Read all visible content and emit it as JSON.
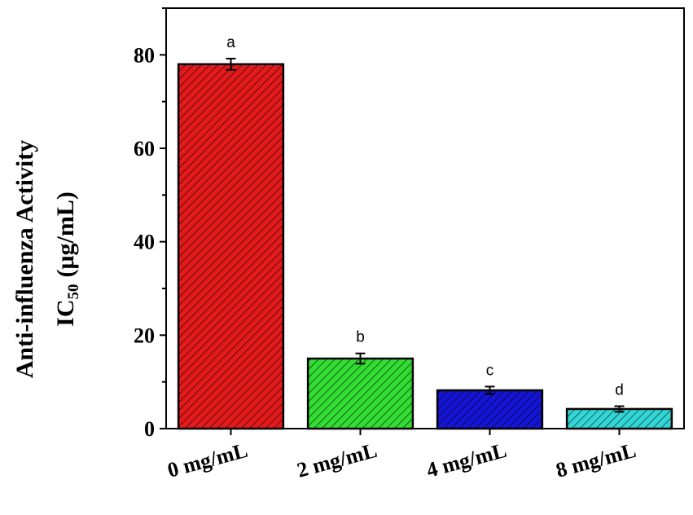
{
  "chart_data": {
    "type": "bar",
    "categories": [
      "0 mg/mL",
      "2 mg/mL",
      "4 mg/mL",
      "8 mg/mL"
    ],
    "values": [
      78,
      15,
      8.2,
      4.2
    ],
    "errors": [
      1.2,
      1.1,
      0.8,
      0.6
    ],
    "significance_letters": [
      "a",
      "b",
      "c",
      "d"
    ],
    "colors": [
      "#e31a1c",
      "#33dd33",
      "#1515d5",
      "#33d6d6"
    ],
    "hatch": "diagonal",
    "ylabel_line1": "Anti-influenza Activity",
    "ylabel_line2_main": "IC",
    "ylabel_line2_sub": "50",
    "ylabel_line2_unit": "(μg/mL)",
    "yticks": [
      "0",
      "20",
      "40",
      "60",
      "80"
    ],
    "ylim": [
      0,
      90
    ],
    "xlabel": "",
    "title": "",
    "grid": false,
    "legend": "none"
  }
}
